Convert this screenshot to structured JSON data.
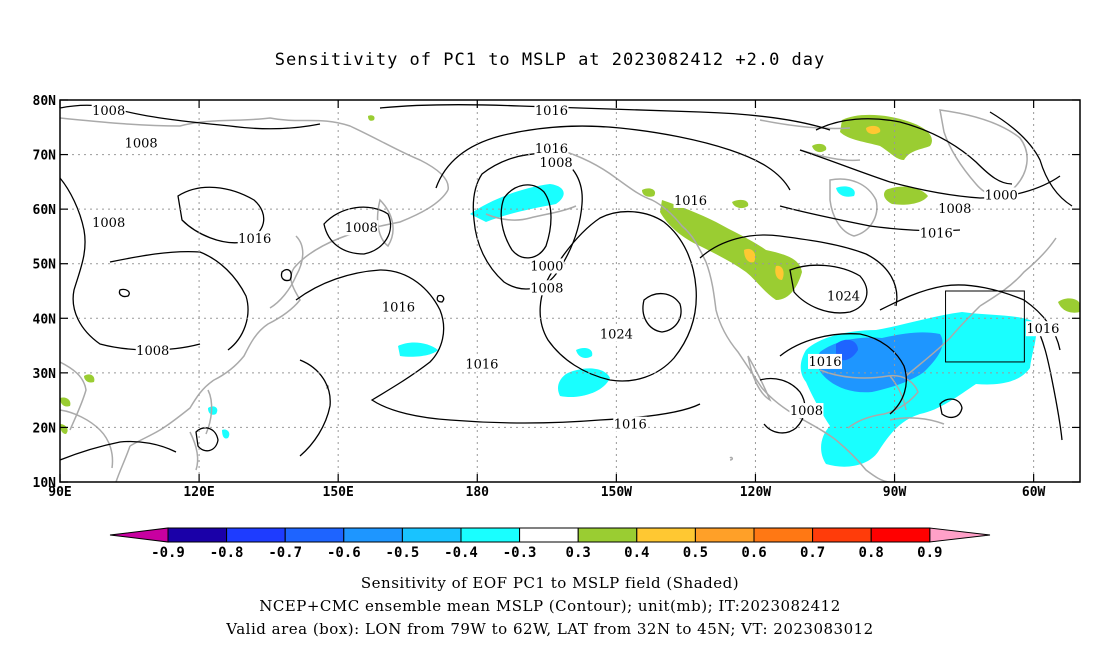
{
  "title": "Sensitivity of PC1 to MSLP at 2023082412 +2.0 day",
  "lat_labels": [
    "80N",
    "70N",
    "60N",
    "50N",
    "40N",
    "30N",
    "20N",
    "10N"
  ],
  "lon_labels": [
    "90E",
    "120E",
    "150E",
    "180",
    "150W",
    "120W",
    "90W",
    "60W"
  ],
  "contour_labels": [
    {
      "text": "1008",
      "lon": 100.5,
      "lat": 78
    },
    {
      "text": "1008",
      "lon": 107.5,
      "lat": 72
    },
    {
      "text": "1008",
      "lon": 100.5,
      "lat": 57.5
    },
    {
      "text": "1016",
      "lon": 132,
      "lat": 54.5
    },
    {
      "text": "1008",
      "lon": 155,
      "lat": 56.5
    },
    {
      "text": "1016",
      "lon": 163,
      "lat": 42
    },
    {
      "text": "1008",
      "lon": 110,
      "lat": 34
    },
    {
      "text": "1016",
      "lon": 196,
      "lat": 78
    },
    {
      "text": "1016",
      "lon": 196,
      "lat": 71
    },
    {
      "text": "1008",
      "lon": 197,
      "lat": 68.5
    },
    {
      "text": "1016",
      "lon": 226,
      "lat": 61.5
    },
    {
      "text": "1000",
      "lon": 195,
      "lat": 49.5
    },
    {
      "text": "1008",
      "lon": 195,
      "lat": 45.5
    },
    {
      "text": "1024",
      "lon": 210,
      "lat": 37
    },
    {
      "text": "1016",
      "lon": 181,
      "lat": 31.5
    },
    {
      "text": "1016",
      "lon": 213,
      "lat": 20.5
    },
    {
      "text": "1000",
      "lon": 293,
      "lat": 62.5
    },
    {
      "text": "1008",
      "lon": 283,
      "lat": 60
    },
    {
      "text": "1016",
      "lon": 279,
      "lat": 55.5
    },
    {
      "text": "1024",
      "lon": 259,
      "lat": 44
    },
    {
      "text": "1016",
      "lon": 255,
      "lat": 32
    },
    {
      "text": "1008",
      "lon": 251,
      "lat": 23
    },
    {
      "text": "1016",
      "lon": 302,
      "lat": 38
    }
  ],
  "colorbar": {
    "labels": [
      "-0.9",
      "-0.8",
      "-0.7",
      "-0.6",
      "-0.5",
      "-0.4",
      "-0.3",
      "0.3",
      "0.4",
      "0.5",
      "0.6",
      "0.7",
      "0.8",
      "0.9"
    ],
    "colors": [
      "#1a00a8",
      "#1e3cff",
      "#1e64ff",
      "#1e96ff",
      "#19c3ff",
      "#19ffff",
      "#ffffff",
      "#9acd32",
      "#ffc832",
      "#ffa028",
      "#ff7814",
      "#ff3c0a",
      "#ff0000"
    ],
    "left_end_color": "#c800a0",
    "right_end_color": "#ffa0c8"
  },
  "valid_box": {
    "lon_min": 281,
    "lon_max": 298,
    "lat_min": 32,
    "lat_max": 45
  },
  "captions": {
    "line1": "Sensitivity of EOF PC1 to MSLP field (Shaded)",
    "line2": "NCEP+CMC ensemble mean MSLP (Contour); unit(mb); IT:2023082412",
    "line3": "Valid area (box): LON from 79W to 62W, LAT from 32N to 45N; VT: 2023083012"
  },
  "colors": {
    "coast": "#aaaaaa",
    "contour": "#000000",
    "grid": "#999999"
  }
}
